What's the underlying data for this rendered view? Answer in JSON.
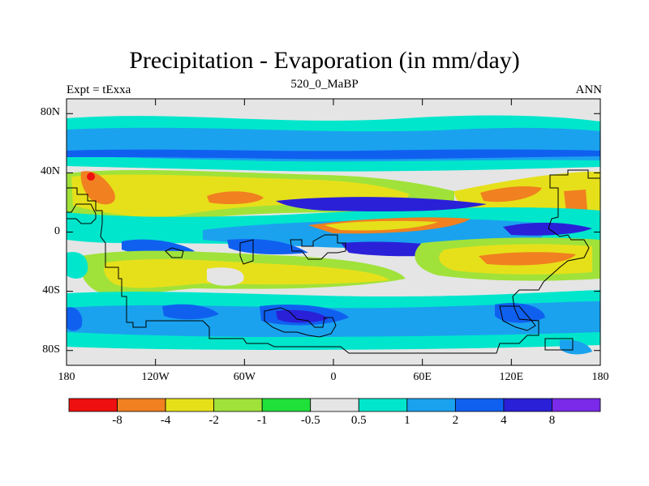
{
  "title": "Precipitation - Evaporation (in mm/day)",
  "left_label": "Expt = tExxa",
  "center_label": "520_0_MaBP",
  "right_label": "ANN",
  "lat_ticks": [
    {
      "label": "80N",
      "value": 80
    },
    {
      "label": "40N",
      "value": 40
    },
    {
      "label": "0",
      "value": 0
    },
    {
      "label": "40S",
      "value": -40
    },
    {
      "label": "80S",
      "value": -80
    }
  ],
  "lon_ticks": [
    {
      "label": "180",
      "value": -180
    },
    {
      "label": "120W",
      "value": -120
    },
    {
      "label": "60W",
      "value": -60
    },
    {
      "label": "0",
      "value": 0
    },
    {
      "label": "60E",
      "value": 60
    },
    {
      "label": "120E",
      "value": 120
    },
    {
      "label": "180",
      "value": 180
    }
  ],
  "colorbar": {
    "colors": [
      "#ee1010",
      "#f08020",
      "#e6e01a",
      "#a0e23a",
      "#20e03a",
      "#e5e5e5",
      "#00e6cc",
      "#1aa2ee",
      "#1060f0",
      "#2a20d8",
      "#7a2ae8"
    ],
    "labels": [
      "-8",
      "-4",
      "-2",
      "-1",
      "-0.5",
      "0.5",
      "1",
      "2",
      "4",
      "8"
    ]
  },
  "chart_data": {
    "type": "heatmap",
    "title": "Precipitation - Evaporation (in mm/day)",
    "variable": "P-E",
    "units": "mm/day",
    "subtitle_left": "Expt = tExxa",
    "subtitle_center": "520_0_MaBP",
    "subtitle_right": "ANN",
    "xlim": [
      -180,
      180
    ],
    "ylim": [
      -90,
      90
    ],
    "contour_levels": [
      -8,
      -4,
      -2,
      -1,
      -0.5,
      0.5,
      1,
      2,
      4,
      8
    ],
    "zonal_bands": [
      {
        "lat_range": [
          75,
          90
        ],
        "class": "-0.5 to 0.5"
      },
      {
        "lat_range": [
          45,
          75
        ],
        "class": "0.5 to 4"
      },
      {
        "lat_range": [
          15,
          40
        ],
        "class": "-4 to -1"
      },
      {
        "lat_range": [
          -5,
          12
        ],
        "class": "1 to 8"
      },
      {
        "lat_range": [
          -35,
          -10
        ],
        "class": "-4 to -1"
      },
      {
        "lat_range": [
          -65,
          -40
        ],
        "class": "1 to 4"
      },
      {
        "lat_range": [
          -90,
          -75
        ],
        "class": "-0.5 to 0.5"
      }
    ]
  }
}
